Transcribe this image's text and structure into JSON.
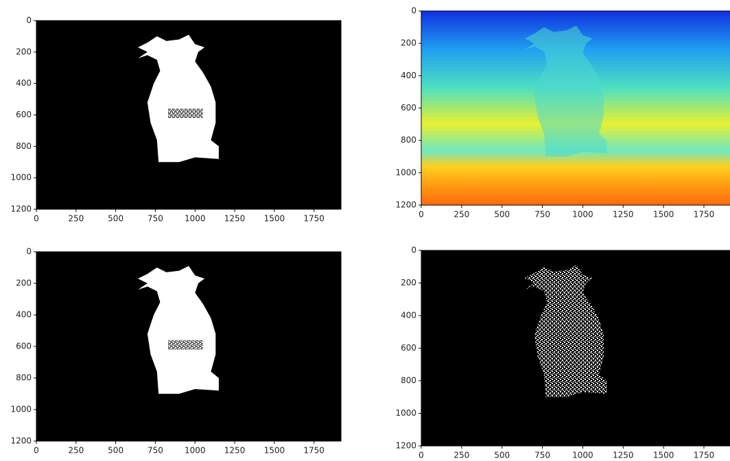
{
  "chart_data": [
    {
      "type": "image",
      "colormap": "gray",
      "xlim": [
        0,
        1920
      ],
      "ylim": [
        1200,
        0
      ],
      "xticks": [
        0,
        250,
        500,
        750,
        1000,
        1250,
        1500,
        1750
      ],
      "yticks": [
        0,
        200,
        400,
        600,
        800,
        1000,
        1200
      ]
    },
    {
      "type": "image",
      "colormap": "jet",
      "xlim": [
        0,
        1920
      ],
      "ylim": [
        1200,
        0
      ],
      "xticks": [
        0,
        250,
        500,
        750,
        1000,
        1250,
        1500,
        1750
      ],
      "yticks": [
        0,
        200,
        400,
        600,
        800,
        1000,
        1200
      ]
    },
    {
      "type": "image",
      "colormap": "gray",
      "xlim": [
        0,
        1920
      ],
      "ylim": [
        1200,
        0
      ],
      "xticks": [
        0,
        250,
        500,
        750,
        1000,
        1250,
        1500,
        1750
      ],
      "yticks": [
        0,
        200,
        400,
        600,
        800,
        1000,
        1200
      ]
    },
    {
      "type": "image",
      "colormap": "gray-noisy",
      "xlim": [
        0,
        1920
      ],
      "ylim": [
        1200,
        0
      ],
      "xticks": [
        0,
        250,
        500,
        750,
        1000,
        1250,
        1500,
        1750
      ],
      "yticks": [
        0,
        200,
        400,
        600,
        800,
        1000,
        1200
      ]
    }
  ]
}
